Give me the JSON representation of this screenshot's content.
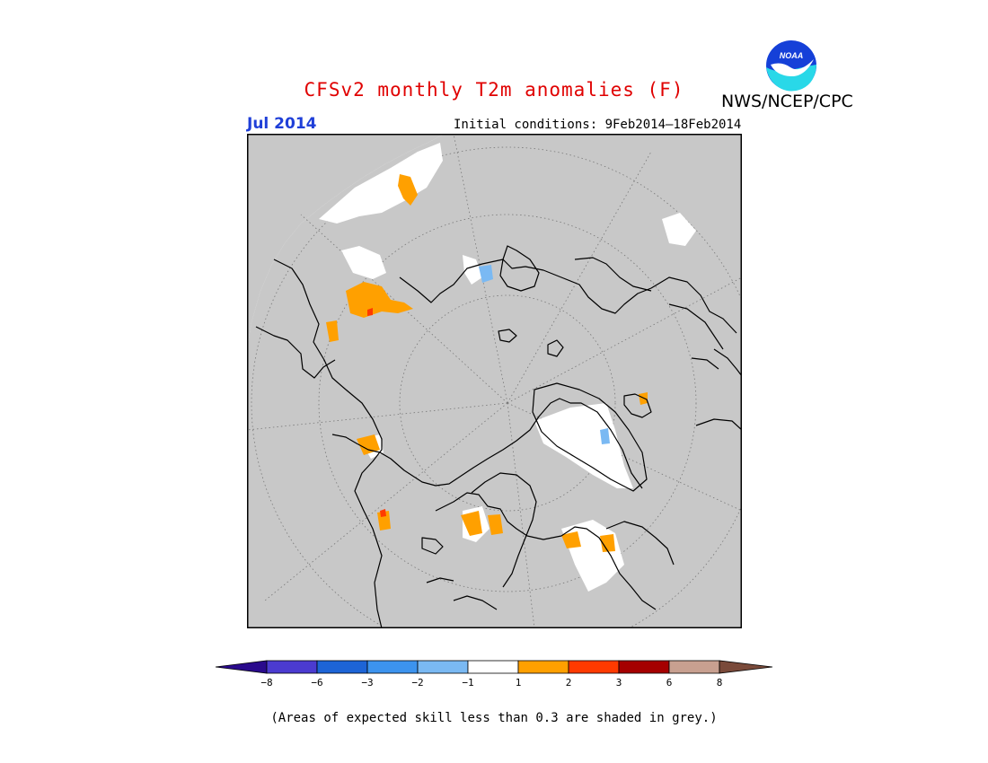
{
  "title": "CFSv2 monthly T2m anomalies (F)",
  "target_month": "Jul 2014",
  "initial_conditions": "Initial conditions: 9Feb2014–18Feb2014",
  "agency": "NWS/NCEP/CPC",
  "logo_text": "NOAA",
  "footnote": "(Areas of expected skill less than 0.3 are shaded in grey.)",
  "projection": "north polar stereographic",
  "map_colors": {
    "skill_mask": "#c8c8c8",
    "frame": "#000000",
    "coastline": "#000000",
    "graticule": "#777777"
  },
  "colorbar": {
    "labels": [
      "−8",
      "−6",
      "−3",
      "−2",
      "−1",
      "1",
      "2",
      "3",
      "6",
      "8"
    ],
    "colors": [
      "#2a0a8c",
      "#4b3bd0",
      "#1d64d6",
      "#3c93ee",
      "#7ab9f3",
      "#ffffff",
      "#ffa000",
      "#ff3a00",
      "#a50000",
      "#c8a090",
      "#7a4a3a"
    ]
  }
}
